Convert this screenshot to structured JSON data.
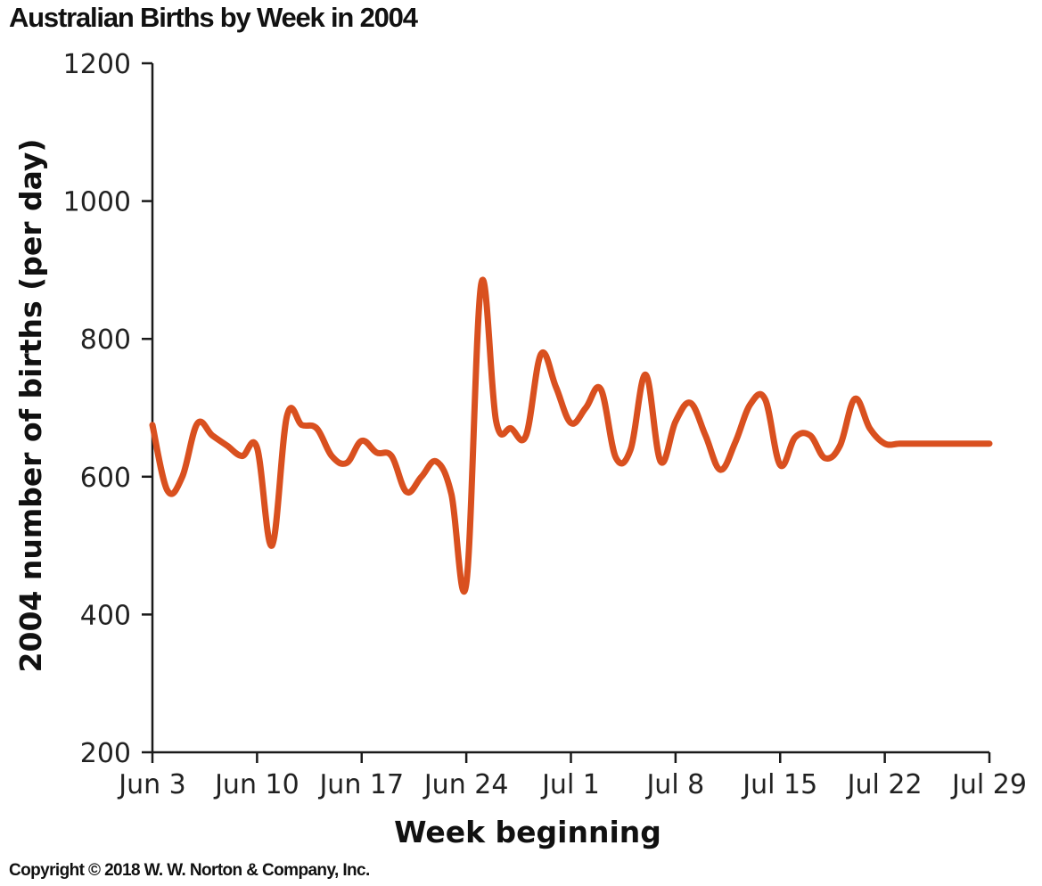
{
  "title": "Australian Births by Week in 2004",
  "copyright": "Copyright © 2018 W. W. Norton & Company, Inc.",
  "colors": {
    "line": "#d9501f",
    "axis": "#1a1a1a",
    "text": "#111111"
  },
  "chart_data": {
    "type": "line",
    "title": "Australian Births by Week in 2004",
    "xlabel": "Week beginning",
    "ylabel": "2004 number of births (per day)",
    "ylim": [
      200,
      1200
    ],
    "yticks": [
      200,
      400,
      600,
      800,
      1000,
      1200
    ],
    "xlim": [
      "2004-06-03",
      "2004-07-29"
    ],
    "xticks": [
      {
        "date": "2004-06-03",
        "label": "Jun 3"
      },
      {
        "date": "2004-06-10",
        "label": "Jun 10"
      },
      {
        "date": "2004-06-17",
        "label": "Jun 17"
      },
      {
        "date": "2004-06-24",
        "label": "Jun 24"
      },
      {
        "date": "2004-07-01",
        "label": "Jul 1"
      },
      {
        "date": "2004-07-08",
        "label": "Jul 8"
      },
      {
        "date": "2004-07-15",
        "label": "Jul 15"
      },
      {
        "date": "2004-07-22",
        "label": "Jul 22"
      },
      {
        "date": "2004-07-29",
        "label": "Jul 29"
      }
    ],
    "grid": false,
    "legend": "none",
    "series": [
      {
        "x": [
          "2004-06-03",
          "2004-06-04",
          "2004-06-05",
          "2004-06-06",
          "2004-06-07",
          "2004-06-08",
          "2004-06-09",
          "2004-06-10",
          "2004-06-11",
          "2004-06-12",
          "2004-06-13",
          "2004-06-14",
          "2004-06-15",
          "2004-06-16",
          "2004-06-17",
          "2004-06-18",
          "2004-06-19",
          "2004-06-20",
          "2004-06-21",
          "2004-06-22",
          "2004-06-23",
          "2004-06-24",
          "2004-06-25",
          "2004-06-26",
          "2004-06-27",
          "2004-06-28",
          "2004-06-29",
          "2004-06-30",
          "2004-07-01",
          "2004-07-02",
          "2004-07-03",
          "2004-07-04",
          "2004-07-05",
          "2004-07-06",
          "2004-07-07",
          "2004-07-08",
          "2004-07-09",
          "2004-07-10",
          "2004-07-11",
          "2004-07-12",
          "2004-07-13",
          "2004-07-14",
          "2004-07-15",
          "2004-07-16",
          "2004-07-17",
          "2004-07-18",
          "2004-07-19",
          "2004-07-20",
          "2004-07-21",
          "2004-07-22",
          "2004-07-23",
          "2004-07-24",
          "2004-07-25",
          "2004-07-26",
          "2004-07-27",
          "2004-07-28",
          "2004-07-29"
        ],
        "values": [
          675,
          580,
          600,
          677,
          660,
          645,
          630,
          642,
          500,
          688,
          675,
          670,
          630,
          620,
          652,
          635,
          630,
          578,
          600,
          622,
          575,
          445,
          880,
          680,
          670,
          660,
          778,
          730,
          678,
          700,
          727,
          628,
          640,
          748,
          622,
          680,
          707,
          660,
          610,
          650,
          705,
          712,
          617,
          657,
          660,
          627,
          645,
          713,
          670,
          648,
          648,
          648,
          648,
          648,
          648,
          648,
          648
        ]
      }
    ]
  }
}
